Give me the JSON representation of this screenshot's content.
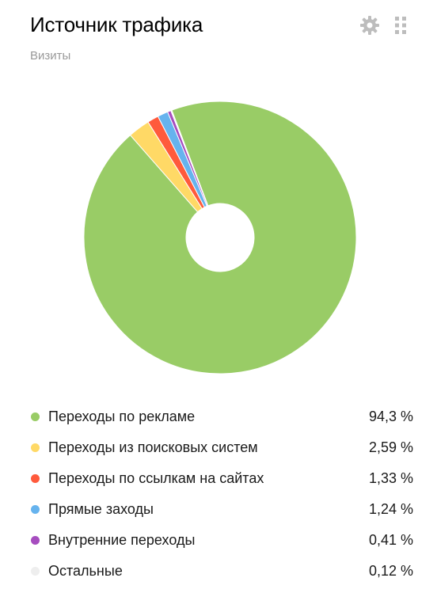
{
  "widget": {
    "title": "Источник трафика",
    "subtitle": "Визиты",
    "settings_icon": "gear-icon",
    "drag_icon": "drag-handle-icon"
  },
  "chart_data": {
    "type": "pie",
    "donut": true,
    "legend_position": "bottom",
    "slices": [
      {
        "label": "Переходы по рекламе",
        "value": 94.3,
        "display": "94,3 %",
        "color": "#99cc66"
      },
      {
        "label": "Переходы из поисковых систем",
        "value": 2.59,
        "display": "2,59 %",
        "color": "#ffd966"
      },
      {
        "label": "Переходы по ссылкам на сайтах",
        "value": 1.33,
        "display": "1,33 %",
        "color": "#ff5a3c"
      },
      {
        "label": "Прямые заходы",
        "value": 1.24,
        "display": "1,24 %",
        "color": "#66b3ee"
      },
      {
        "label": "Внутренние переходы",
        "value": 0.41,
        "display": "0,41 %",
        "color": "#a64dbf"
      },
      {
        "label": "Остальные",
        "value": 0.12,
        "display": "0,12 %",
        "color": "#eeeeee"
      }
    ]
  }
}
